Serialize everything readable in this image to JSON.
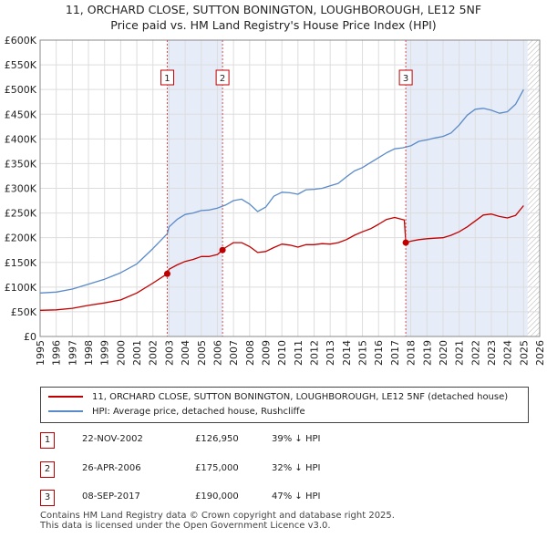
{
  "title_line1": "11, ORCHARD CLOSE, SUTTON BONINGTON, LOUGHBOROUGH, LE12 5NF",
  "title_line2": "Price paid vs. HM Land Registry's House Price Index (HPI)",
  "legend": {
    "property": "11, ORCHARD CLOSE, SUTTON BONINGTON, LOUGHBOROUGH, LE12 5NF (detached house)",
    "hpi": "HPI: Average price, detached house, Rushcliffe"
  },
  "transactions": [
    {
      "num": "1",
      "date": "22-NOV-2002",
      "price": "£126,950",
      "hpi": "39% ↓ HPI"
    },
    {
      "num": "2",
      "date": "26-APR-2006",
      "price": "£175,000",
      "hpi": "32% ↓ HPI"
    },
    {
      "num": "3",
      "date": "08-SEP-2017",
      "price": "£190,000",
      "hpi": "47% ↓ HPI"
    }
  ],
  "footer": {
    "line1": "Contains HM Land Registry data © Crown copyright and database right 2025.",
    "line2": "This data is licensed under the Open Government Licence v3.0."
  },
  "colors": {
    "property": "#c00000",
    "hpi": "#5a8ac8",
    "shade": "#e6ecf8",
    "marker_line": "#d05050",
    "hatch": "#b0b0b0"
  },
  "chart_data": {
    "type": "line",
    "title": "11, ORCHARD CLOSE, SUTTON BONINGTON, LOUGHBOROUGH, LE12 5NF — Price paid vs. HM Land Registry's House Price Index (HPI)",
    "xlim": [
      1995,
      2026
    ],
    "ylim": [
      0,
      600000
    ],
    "x_ticks": [
      1995,
      1996,
      1997,
      1998,
      1999,
      2000,
      2001,
      2002,
      2003,
      2004,
      2005,
      2006,
      2007,
      2008,
      2009,
      2010,
      2011,
      2012,
      2013,
      2014,
      2015,
      2016,
      2017,
      2018,
      2019,
      2020,
      2021,
      2022,
      2023,
      2024,
      2025,
      2026
    ],
    "y_ticks": [
      0,
      50000,
      100000,
      150000,
      200000,
      250000,
      300000,
      350000,
      400000,
      450000,
      500000,
      550000,
      600000
    ],
    "y_tick_labels": [
      "£0",
      "£50K",
      "£100K",
      "£150K",
      "£200K",
      "£250K",
      "£300K",
      "£350K",
      "£400K",
      "£450K",
      "£500K",
      "£550K",
      "£600K"
    ],
    "shaded_ranges": [
      [
        2002.89,
        2006.32
      ],
      [
        2017.69,
        2025.25
      ]
    ],
    "future_hatch_from": 2025.25,
    "sales": [
      {
        "label": "1",
        "x": 2002.89,
        "y": 126950
      },
      {
        "label": "2",
        "x": 2006.32,
        "y": 175000
      },
      {
        "label": "3",
        "x": 2017.69,
        "y": 190000
      }
    ],
    "series": [
      {
        "name": "11, ORCHARD CLOSE, SUTTON BONINGTON, LOUGHBOROUGH, LE12 5NF (detached house)",
        "x": [
          1995,
          1996,
          1997,
          1998,
          1999,
          2000,
          2001,
          2002,
          2002.89,
          2003,
          2003.5,
          2004,
          2004.5,
          2005,
          2005.5,
          2006,
          2006.32,
          2006.5,
          2007,
          2007.5,
          2008,
          2008.5,
          2009,
          2009.5,
          2010,
          2010.5,
          2011,
          2011.5,
          2012,
          2012.5,
          2013,
          2013.5,
          2014,
          2014.5,
          2015,
          2015.5,
          2016,
          2016.5,
          2017,
          2017.6,
          2017.69,
          2018,
          2018.5,
          2019,
          2019.5,
          2020,
          2020.5,
          2021,
          2021.5,
          2022,
          2022.5,
          2023,
          2023.5,
          2024,
          2024.5,
          2025.0
        ],
        "y": [
          53000,
          54000,
          57000,
          63000,
          68000,
          74000,
          88000,
          108000,
          126950,
          136000,
          145000,
          152000,
          156000,
          162000,
          162000,
          166000,
          175000,
          180000,
          190000,
          190000,
          182000,
          170000,
          172000,
          180000,
          187000,
          185000,
          181000,
          186000,
          186000,
          188000,
          187000,
          190000,
          196000,
          205000,
          212000,
          218000,
          227000,
          237000,
          241000,
          236000,
          190000,
          193000,
          196000,
          198000,
          199000,
          200000,
          205000,
          212000,
          222000,
          234000,
          246000,
          248000,
          243000,
          240000,
          245000,
          265000
        ]
      },
      {
        "name": "HPI: Average price, detached house, Rushcliffe",
        "x": [
          1995,
          1996,
          1997,
          1998,
          1999,
          2000,
          2001,
          2002,
          2002.89,
          2003,
          2003.5,
          2004,
          2004.5,
          2005,
          2005.5,
          2006,
          2006.5,
          2007,
          2007.5,
          2008,
          2008.5,
          2009,
          2009.5,
          2010,
          2010.5,
          2011,
          2011.5,
          2012,
          2012.5,
          2013,
          2013.5,
          2014,
          2014.5,
          2015,
          2015.5,
          2016,
          2016.5,
          2017,
          2017.5,
          2018,
          2018.5,
          2019,
          2019.5,
          2020,
          2020.5,
          2021,
          2021.5,
          2022,
          2022.5,
          2023,
          2023.5,
          2024,
          2024.5,
          2025.0
        ],
        "y": [
          88000,
          90000,
          96000,
          106000,
          116000,
          129000,
          147000,
          178000,
          208000,
          222000,
          237000,
          247000,
          250000,
          255000,
          256000,
          260000,
          266000,
          275000,
          278000,
          268000,
          253000,
          262000,
          284000,
          292000,
          291000,
          288000,
          297000,
          298000,
          300000,
          305000,
          310000,
          323000,
          335000,
          342000,
          352000,
          362000,
          372000,
          380000,
          382000,
          386000,
          395000,
          398000,
          402000,
          405000,
          412000,
          428000,
          448000,
          460000,
          462000,
          458000,
          452000,
          455000,
          470000,
          500000
        ]
      }
    ]
  }
}
